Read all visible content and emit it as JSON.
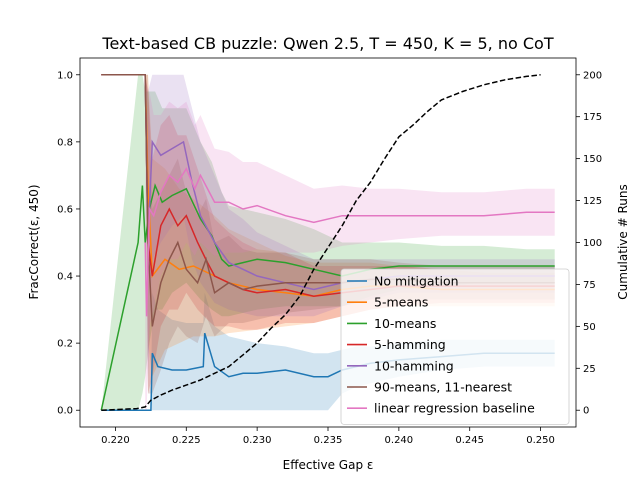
{
  "chart_data": {
    "type": "line",
    "title": "Text-based CB puzzle: Qwen 2.5, T = 450, K = 5, no CoT",
    "xlabel": "Effective Gap ε",
    "ylabel": "FracCorrect(ε, 450)",
    "ylabel_right": "Cumulative # Runs",
    "xlim": [
      0.2175,
      0.2525
    ],
    "ylim": [
      -0.05,
      1.05
    ],
    "ylim_right": [
      -10,
      210
    ],
    "xticks": [
      "0.220",
      "0.225",
      "0.230",
      "0.235",
      "0.240",
      "0.245",
      "0.250"
    ],
    "yticks": [
      "0.0",
      "0.2",
      "0.4",
      "0.6",
      "0.8",
      "1.0"
    ],
    "yticks_right": [
      "0",
      "25",
      "50",
      "75",
      "100",
      "125",
      "150",
      "175",
      "200"
    ],
    "legend_position": "lower-right",
    "series": [
      {
        "name": "No mitigation",
        "color": "#1f77b4",
        "x": [
          0.219,
          0.2221,
          0.2225,
          0.2226,
          0.223,
          0.224,
          0.225,
          0.2262,
          0.2263,
          0.227,
          0.228,
          0.229,
          0.23,
          0.232,
          0.234,
          0.235,
          0.236,
          0.237,
          0.238,
          0.24,
          0.243,
          0.246,
          0.249,
          0.251
        ],
        "y": [
          0.0,
          0.0,
          0.0,
          0.17,
          0.13,
          0.12,
          0.12,
          0.13,
          0.23,
          0.13,
          0.1,
          0.11,
          0.11,
          0.12,
          0.1,
          0.1,
          0.12,
          0.13,
          0.14,
          0.15,
          0.16,
          0.17,
          0.17,
          0.17
        ],
        "y_low": [
          0.0,
          0.0,
          0.0,
          0.0,
          0.0,
          0.0,
          0.0,
          0.0,
          0.0,
          0.0,
          0.0,
          0.0,
          0.0,
          0.0,
          0.0,
          0.0,
          0.05,
          0.07,
          0.08,
          0.1,
          0.12,
          0.13,
          0.13,
          0.13
        ],
        "y_high": [
          0.0,
          0.0,
          0.0,
          0.35,
          0.3,
          0.27,
          0.26,
          0.26,
          0.35,
          0.25,
          0.22,
          0.21,
          0.2,
          0.19,
          0.17,
          0.17,
          0.18,
          0.19,
          0.19,
          0.2,
          0.21,
          0.21,
          0.21,
          0.21
        ]
      },
      {
        "name": "5-means",
        "color": "#ff7f0e",
        "x": [
          0.219,
          0.2221,
          0.2223,
          0.2226,
          0.2235,
          0.2245,
          0.2255,
          0.227,
          0.228,
          0.23,
          0.232,
          0.234,
          0.236,
          0.238,
          0.24,
          0.243,
          0.246,
          0.249,
          0.251
        ],
        "y": [
          1.0,
          1.0,
          0.67,
          0.4,
          0.45,
          0.42,
          0.43,
          0.4,
          0.38,
          0.36,
          0.35,
          0.34,
          0.36,
          0.37,
          0.37,
          0.36,
          0.36,
          0.36,
          0.36
        ],
        "y_low": [
          1.0,
          1.0,
          0.2,
          0.1,
          0.18,
          0.2,
          0.22,
          0.22,
          0.23,
          0.24,
          0.25,
          0.26,
          0.28,
          0.3,
          0.31,
          0.31,
          0.31,
          0.31,
          0.31
        ],
        "y_high": [
          1.0,
          1.0,
          1.0,
          0.75,
          0.72,
          0.66,
          0.63,
          0.58,
          0.54,
          0.5,
          0.46,
          0.44,
          0.44,
          0.44,
          0.43,
          0.42,
          0.41,
          0.41,
          0.41
        ]
      },
      {
        "name": "10-means",
        "color": "#2ca02c",
        "x": [
          0.219,
          0.2216,
          0.2219,
          0.2221,
          0.2224,
          0.2228,
          0.2233,
          0.224,
          0.225,
          0.226,
          0.2268,
          0.2275,
          0.228,
          0.229,
          0.23,
          0.232,
          0.234,
          0.236,
          0.238,
          0.24,
          0.243,
          0.246,
          0.249,
          0.251
        ],
        "y": [
          0.0,
          0.5,
          0.67,
          0.5,
          0.6,
          0.67,
          0.62,
          0.64,
          0.66,
          0.57,
          0.52,
          0.45,
          0.43,
          0.44,
          0.45,
          0.44,
          0.42,
          0.4,
          0.42,
          0.43,
          0.43,
          0.43,
          0.43,
          0.43
        ],
        "y_low": [
          0.0,
          0.0,
          0.05,
          0.1,
          0.2,
          0.3,
          0.3,
          0.35,
          0.38,
          0.33,
          0.3,
          0.28,
          0.28,
          0.29,
          0.3,
          0.31,
          0.31,
          0.31,
          0.34,
          0.36,
          0.37,
          0.38,
          0.38,
          0.38
        ],
        "y_high": [
          0.0,
          1.0,
          1.0,
          0.95,
          0.95,
          0.95,
          0.9,
          0.9,
          0.9,
          0.8,
          0.74,
          0.65,
          0.61,
          0.6,
          0.59,
          0.57,
          0.54,
          0.5,
          0.5,
          0.5,
          0.49,
          0.49,
          0.48,
          0.48
        ]
      },
      {
        "name": "5-hamming",
        "color": "#d62728",
        "x": [
          0.219,
          0.2221,
          0.2223,
          0.2226,
          0.2232,
          0.2238,
          0.2244,
          0.225,
          0.2258,
          0.2265,
          0.227,
          0.228,
          0.229,
          0.23,
          0.232,
          0.234,
          0.236,
          0.238,
          0.24,
          0.243,
          0.246,
          0.249,
          0.251
        ],
        "y": [
          1.0,
          1.0,
          0.5,
          0.4,
          0.55,
          0.6,
          0.55,
          0.58,
          0.5,
          0.44,
          0.4,
          0.38,
          0.36,
          0.35,
          0.36,
          0.34,
          0.35,
          0.36,
          0.37,
          0.37,
          0.37,
          0.37,
          0.37
        ],
        "y_low": [
          1.0,
          1.0,
          0.05,
          0.1,
          0.25,
          0.3,
          0.3,
          0.35,
          0.3,
          0.27,
          0.25,
          0.25,
          0.24,
          0.24,
          0.26,
          0.26,
          0.28,
          0.3,
          0.31,
          0.32,
          0.32,
          0.32,
          0.32
        ],
        "y_high": [
          1.0,
          1.0,
          0.95,
          0.75,
          0.85,
          0.88,
          0.82,
          0.82,
          0.72,
          0.63,
          0.57,
          0.53,
          0.5,
          0.48,
          0.47,
          0.43,
          0.43,
          0.43,
          0.43,
          0.42,
          0.42,
          0.42,
          0.42
        ]
      },
      {
        "name": "10-hamming",
        "color": "#9467bd",
        "x": [
          0.219,
          0.2221,
          0.2223,
          0.2226,
          0.2232,
          0.224,
          0.2248,
          0.2254,
          0.226,
          0.227,
          0.228,
          0.229,
          0.23,
          0.232,
          0.234,
          0.236,
          0.238,
          0.24,
          0.243,
          0.246,
          0.249,
          0.251
        ],
        "y": [
          1.0,
          1.0,
          0.5,
          0.8,
          0.76,
          0.78,
          0.8,
          0.68,
          0.58,
          0.5,
          0.44,
          0.42,
          0.4,
          0.38,
          0.36,
          0.38,
          0.39,
          0.4,
          0.4,
          0.4,
          0.4,
          0.4
        ],
        "y_low": [
          1.0,
          1.0,
          0.1,
          0.45,
          0.5,
          0.55,
          0.58,
          0.45,
          0.38,
          0.32,
          0.3,
          0.29,
          0.28,
          0.28,
          0.28,
          0.31,
          0.33,
          0.35,
          0.35,
          0.35,
          0.35,
          0.35
        ],
        "y_high": [
          1.0,
          1.0,
          0.95,
          1.0,
          1.0,
          1.0,
          1.0,
          0.9,
          0.8,
          0.7,
          0.6,
          0.57,
          0.53,
          0.49,
          0.45,
          0.45,
          0.45,
          0.45,
          0.45,
          0.45,
          0.45,
          0.45
        ]
      },
      {
        "name": "90-means, 11-nearest",
        "color": "#8c564b",
        "x": [
          0.219,
          0.2221,
          0.2223,
          0.2226,
          0.2232,
          0.2238,
          0.2244,
          0.225,
          0.2258,
          0.2264,
          0.227,
          0.228,
          0.229,
          0.23,
          0.232,
          0.234,
          0.236,
          0.238,
          0.24,
          0.243,
          0.246,
          0.249,
          0.251
        ],
        "y": [
          1.0,
          1.0,
          0.5,
          0.25,
          0.38,
          0.45,
          0.5,
          0.42,
          0.38,
          0.45,
          0.35,
          0.38,
          0.36,
          0.37,
          0.38,
          0.38,
          0.38,
          0.39,
          0.39,
          0.38,
          0.38,
          0.38,
          0.38
        ],
        "y_low": [
          1.0,
          1.0,
          0.05,
          0.05,
          0.12,
          0.2,
          0.25,
          0.22,
          0.2,
          0.28,
          0.22,
          0.26,
          0.26,
          0.27,
          0.29,
          0.3,
          0.31,
          0.33,
          0.33,
          0.33,
          0.33,
          0.33,
          0.33
        ],
        "y_high": [
          1.0,
          1.0,
          1.0,
          0.6,
          0.65,
          0.7,
          0.75,
          0.65,
          0.58,
          0.63,
          0.5,
          0.52,
          0.48,
          0.47,
          0.47,
          0.45,
          0.45,
          0.45,
          0.44,
          0.43,
          0.43,
          0.43,
          0.43
        ]
      },
      {
        "name": "linear regression baseline",
        "color": "#e377c2",
        "x": [
          0.2221,
          0.2222,
          0.2224,
          0.2227,
          0.2232,
          0.2238,
          0.2244,
          0.225,
          0.2256,
          0.226,
          0.227,
          0.228,
          0.229,
          0.23,
          0.232,
          0.234,
          0.236,
          0.238,
          0.24,
          0.243,
          0.246,
          0.249,
          0.251
        ],
        "y": [
          0.5,
          0.28,
          0.6,
          0.58,
          0.65,
          0.7,
          0.68,
          0.72,
          0.66,
          0.7,
          0.62,
          0.62,
          0.6,
          0.61,
          0.58,
          0.56,
          0.58,
          0.58,
          0.58,
          0.58,
          0.58,
          0.59,
          0.59
        ],
        "y_low": [
          0.0,
          0.0,
          0.25,
          0.3,
          0.4,
          0.45,
          0.45,
          0.5,
          0.46,
          0.5,
          0.46,
          0.47,
          0.47,
          0.48,
          0.47,
          0.47,
          0.49,
          0.5,
          0.51,
          0.52,
          0.52,
          0.52,
          0.52
        ],
        "y_high": [
          1.0,
          0.75,
          0.95,
          0.88,
          0.88,
          0.92,
          0.9,
          0.92,
          0.85,
          0.88,
          0.78,
          0.77,
          0.74,
          0.74,
          0.7,
          0.66,
          0.67,
          0.66,
          0.66,
          0.65,
          0.65,
          0.66,
          0.66
        ]
      },
      {
        "name": "",
        "axis": "right",
        "color": "#000000",
        "dash": true,
        "x": [
          0.219,
          0.2215,
          0.2221,
          0.2225,
          0.2232,
          0.224,
          0.225,
          0.226,
          0.227,
          0.228,
          0.229,
          0.23,
          0.231,
          0.232,
          0.233,
          0.234,
          0.235,
          0.236,
          0.237,
          0.238,
          0.239,
          0.24,
          0.241,
          0.242,
          0.243,
          0.2445,
          0.246,
          0.2475,
          0.249,
          0.25
        ],
        "y": [
          0,
          1,
          2,
          6,
          9,
          12,
          15,
          18,
          22,
          26,
          33,
          40,
          49,
          57,
          68,
          84,
          97,
          110,
          125,
          136,
          150,
          163,
          170,
          178,
          185,
          190,
          194,
          197,
          199,
          200
        ]
      }
    ]
  }
}
